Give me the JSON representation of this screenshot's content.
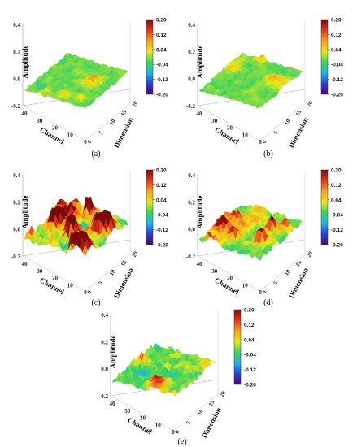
{
  "chart_data": [
    {
      "panel": "(a)",
      "type": "surface",
      "zlabel": "Amplitude",
      "xlabel": "Channel",
      "ylabel": "Dimension",
      "z_ticks": [
        "0.4",
        "0.2",
        "0.0",
        "-0.2"
      ],
      "channel_ticks": [
        "40",
        "30",
        "20",
        "10",
        "0"
      ],
      "dimension_ticks": [
        "0",
        "5",
        "10",
        "15",
        "20"
      ],
      "colorbar_ticks": [
        "0.20",
        "0.12",
        "0.04",
        "-0.04",
        "-0.12",
        "-0.20"
      ],
      "zlim": [
        -0.2,
        0.4
      ],
      "color_range": [
        -0.2,
        0.2
      ],
      "amplitude_range": [
        -0.04,
        0.1
      ],
      "peak_density": "low"
    },
    {
      "panel": "(b)",
      "type": "surface",
      "zlabel": "Amplitude",
      "xlabel": "Channel",
      "ylabel": "Dimension",
      "z_ticks": [
        "0.4",
        "0.2",
        "0.0",
        "-0.2"
      ],
      "channel_ticks": [
        "40",
        "30",
        "20",
        "10",
        "0"
      ],
      "dimension_ticks": [
        "0",
        "5",
        "10",
        "15",
        "20"
      ],
      "colorbar_ticks": [
        "0.20",
        "0.12",
        "0.04",
        "-0.04",
        "-0.12",
        "-0.20"
      ],
      "zlim": [
        -0.2,
        0.4
      ],
      "color_range": [
        -0.2,
        0.2
      ],
      "amplitude_range": [
        -0.04,
        0.08
      ],
      "peak_density": "low"
    },
    {
      "panel": "(c)",
      "type": "surface",
      "zlabel": "Amplitude",
      "xlabel": "Channel",
      "ylabel": "Dimension",
      "z_ticks": [
        "0.4",
        "0.2",
        "0.0",
        "-0.2"
      ],
      "channel_ticks": [
        "40",
        "30",
        "20",
        "10",
        "0"
      ],
      "dimension_ticks": [
        "0",
        "5",
        "10",
        "15",
        "20"
      ],
      "colorbar_ticks": [
        "0.20",
        "0.12",
        "0.04",
        "-0.04",
        "-0.12",
        "-0.20"
      ],
      "zlim": [
        -0.2,
        0.4
      ],
      "color_range": [
        -0.2,
        0.2
      ],
      "amplitude_range": [
        -0.1,
        0.2
      ],
      "peak_density": "high"
    },
    {
      "panel": "(d)",
      "type": "surface",
      "zlabel": "Amplitude",
      "xlabel": "Channel",
      "ylabel": "Dimension",
      "z_ticks": [
        "0.4",
        "0.2",
        "0.0",
        "-0.2"
      ],
      "channel_ticks": [
        "40",
        "30",
        "20",
        "10",
        "0"
      ],
      "dimension_ticks": [
        "0",
        "5",
        "10",
        "15",
        "20"
      ],
      "colorbar_ticks": [
        "0.20",
        "0.12",
        "0.04",
        "-0.04",
        "-0.12",
        "-0.20"
      ],
      "zlim": [
        -0.2,
        0.4
      ],
      "color_range": [
        -0.2,
        0.2
      ],
      "amplitude_range": [
        -0.12,
        0.16
      ],
      "peak_density": "medium"
    },
    {
      "panel": "(e)",
      "type": "surface",
      "zlabel": "Amplitude",
      "xlabel": "Channel",
      "ylabel": "Dimension",
      "z_ticks": [
        "0.4",
        "0.2",
        "0.0",
        "-0.2"
      ],
      "channel_ticks": [
        "40",
        "30",
        "20",
        "10",
        "0"
      ],
      "dimension_ticks": [
        "0",
        "5",
        "10",
        "15",
        "20"
      ],
      "colorbar_ticks": [
        "0.20",
        "0.12",
        "0.04",
        "-0.04",
        "-0.12",
        "-0.20"
      ],
      "zlim": [
        -0.2,
        0.4
      ],
      "color_range": [
        -0.2,
        0.2
      ],
      "amplitude_range": [
        -0.1,
        0.12
      ],
      "peak_density": "medium"
    }
  ],
  "colormap": [
    "#4b0a6b",
    "#2d3fd6",
    "#19b8e6",
    "#3ed35c",
    "#e8e818",
    "#f4a21a",
    "#e4351c",
    "#7a0a0a"
  ]
}
